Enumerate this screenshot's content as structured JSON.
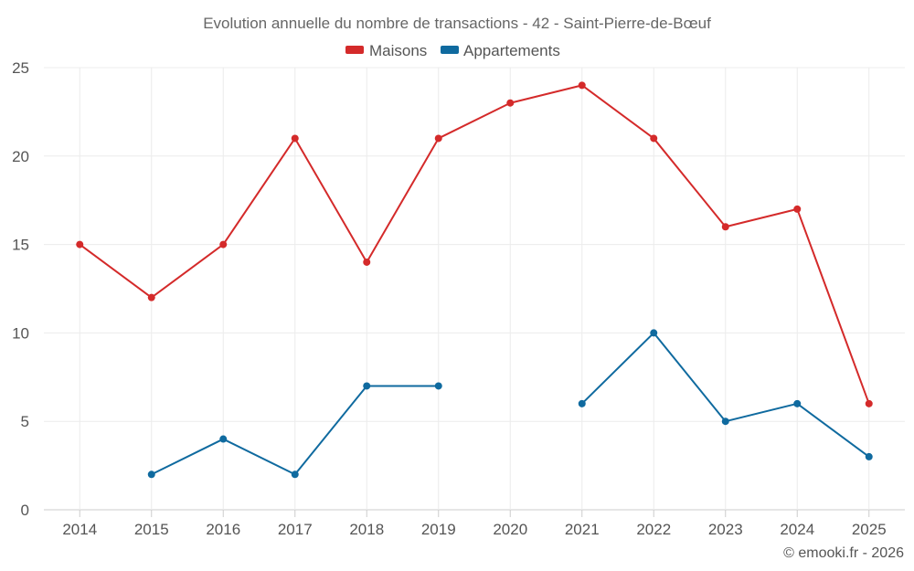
{
  "chart_data": {
    "type": "line",
    "title": "Evolution annuelle du nombre de transactions - 42 - Saint-Pierre-de-Bœuf",
    "categories": [
      "2014",
      "2015",
      "2016",
      "2017",
      "2018",
      "2019",
      "2020",
      "2021",
      "2022",
      "2023",
      "2024",
      "2025"
    ],
    "ylim": [
      0,
      25
    ],
    "yticks": [
      0,
      5,
      10,
      15,
      20,
      25
    ],
    "grid": true,
    "legend_position": "top-center",
    "xlabel": "",
    "ylabel": "",
    "series": [
      {
        "name": "Maisons",
        "color": "#d42a2a",
        "values": [
          15,
          12,
          15,
          21,
          14,
          21,
          23,
          24,
          21,
          16,
          17,
          6
        ]
      },
      {
        "name": "Appartements",
        "color": "#0f6a9f",
        "values": [
          null,
          2,
          4,
          2,
          7,
          7,
          null,
          6,
          10,
          5,
          6,
          3
        ]
      }
    ]
  },
  "credit": "© emooki.fr - 2026"
}
